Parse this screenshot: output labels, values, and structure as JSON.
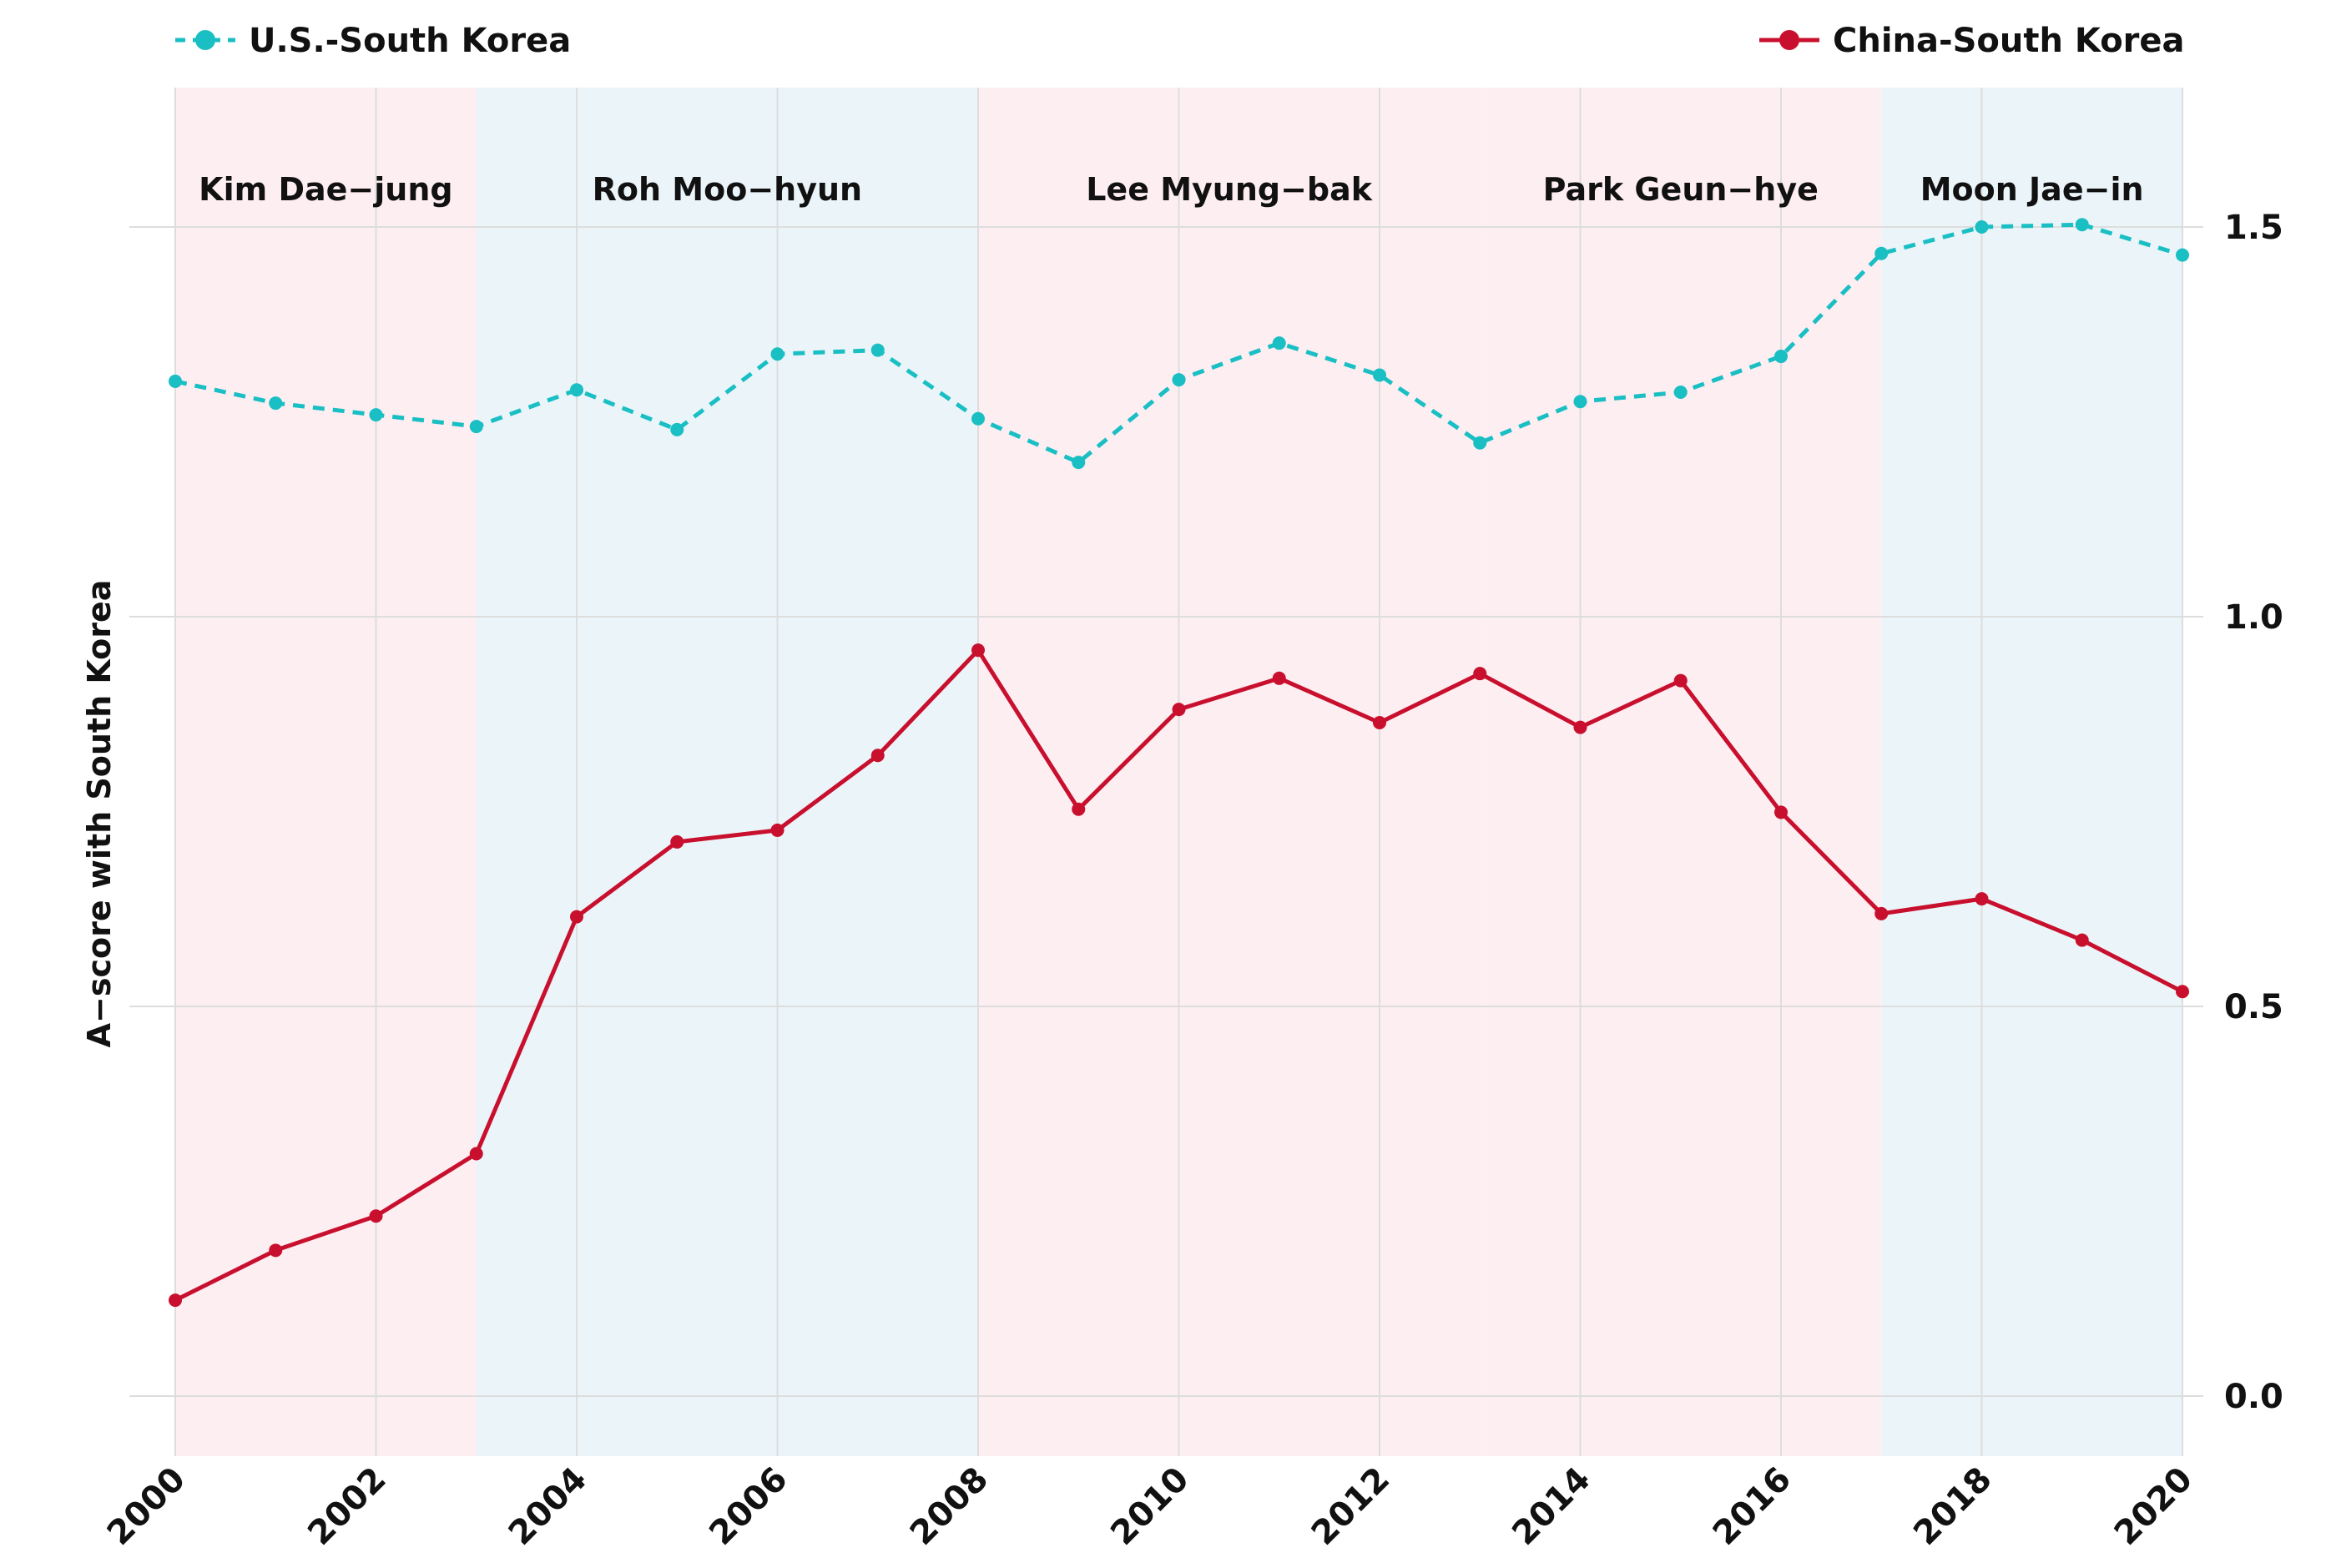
{
  "chart_data": {
    "type": "line",
    "title": "",
    "xlabel": "",
    "ylabel": "A−score with South Korea",
    "xlim": [
      2000,
      2020
    ],
    "ylim": [
      -0.08,
      1.8
    ],
    "x_ticks": [
      "2000",
      "2002",
      "2004",
      "2006",
      "2008",
      "2010",
      "2012",
      "2014",
      "2016",
      "2018",
      "2020"
    ],
    "y_ticks": [
      "0.0",
      "0.5",
      "1.0",
      "1.5"
    ],
    "y_axis_side": "right",
    "grid": true,
    "legend_position": "top",
    "x": [
      2000,
      2001,
      2002,
      2003,
      2004,
      2005,
      2006,
      2007,
      2008,
      2009,
      2010,
      2011,
      2012,
      2013,
      2014,
      2015,
      2016,
      2017,
      2018,
      2019,
      2020
    ],
    "series": [
      {
        "name": "U.S.-South Korea",
        "color": "#1abfc4",
        "style": "dashed",
        "values": [
          1.302,
          1.274,
          1.259,
          1.244,
          1.291,
          1.24,
          1.337,
          1.342,
          1.254,
          1.198,
          1.304,
          1.351,
          1.31,
          1.223,
          1.276,
          1.288,
          1.334,
          1.466,
          1.5,
          1.503,
          1.464
        ]
      },
      {
        "name": "China-South Korea",
        "color": "#c8102e",
        "style": "solid",
        "values": [
          0.123,
          0.187,
          0.231,
          0.311,
          0.615,
          0.711,
          0.726,
          0.822,
          0.957,
          0.753,
          0.881,
          0.921,
          0.864,
          0.927,
          0.858,
          0.918,
          0.749,
          0.619,
          0.638,
          0.585,
          0.519
        ]
      }
    ],
    "shaded_regions": [
      {
        "label": "Kim Dae−jung",
        "start": 2000,
        "end": 2003,
        "color": "#fdeef2"
      },
      {
        "label": "Roh Moo−hyun",
        "start": 2003,
        "end": 2008,
        "color": "#ebf5f9"
      },
      {
        "label": "Lee Myung−bak",
        "start": 2008,
        "end": 2013,
        "color": "#fdeef2"
      },
      {
        "label": "Park Geun−hye",
        "start": 2013,
        "end": 2017,
        "color": "#fdeef2"
      },
      {
        "label": "Moon Jae−in",
        "start": 2017,
        "end": 2020,
        "color": "#ebf5f9"
      }
    ]
  }
}
